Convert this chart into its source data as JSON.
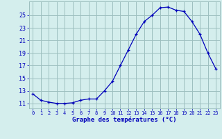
{
  "hours": [
    0,
    1,
    2,
    3,
    4,
    5,
    6,
    7,
    8,
    9,
    10,
    11,
    12,
    13,
    14,
    15,
    16,
    17,
    18,
    19,
    20,
    21,
    22,
    23
  ],
  "temps": [
    12.5,
    11.5,
    11.2,
    11.0,
    11.0,
    11.1,
    11.5,
    11.7,
    11.7,
    13.0,
    14.5,
    17.0,
    19.5,
    22.0,
    24.0,
    25.0,
    26.2,
    26.3,
    25.8,
    25.6,
    24.0,
    22.0,
    19.0,
    16.5
  ],
  "line_color": "#0000bb",
  "marker": "+",
  "bg_color": "#d4eeed",
  "grid_color": "#9dbfbf",
  "xlabel": "Graphe des températures (°C)",
  "xlabel_color": "#0000bb",
  "ylabel_ticks": [
    11,
    13,
    15,
    17,
    19,
    21,
    23,
    25
  ],
  "ylim": [
    10.2,
    27.2
  ],
  "xlim": [
    -0.5,
    23.5
  ],
  "tick_color": "#0000bb",
  "xtick_labels": [
    "0",
    "1",
    "2",
    "3",
    "4",
    "5",
    "6",
    "7",
    "8",
    "9",
    "10",
    "11",
    "12",
    "13",
    "14",
    "15",
    "16",
    "17",
    "18",
    "19",
    "20",
    "21",
    "22",
    "23"
  ]
}
